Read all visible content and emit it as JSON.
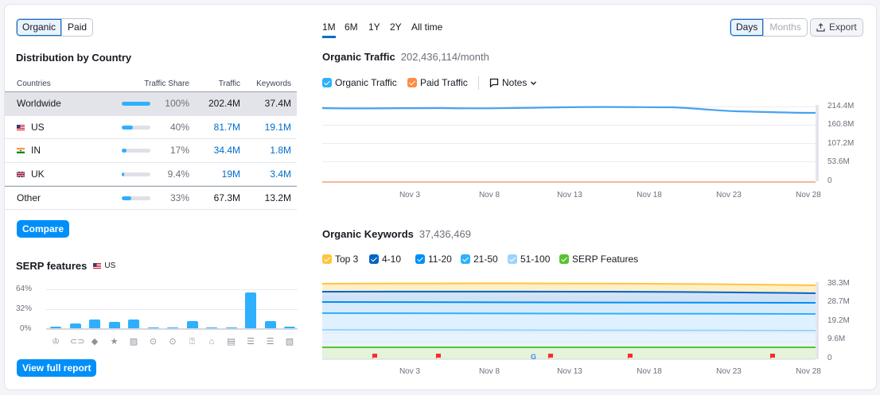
{
  "left": {
    "toggle": {
      "organic": "Organic",
      "paid": "Paid"
    },
    "distribution_title": "Distribution by Country",
    "table": {
      "headers": {
        "country": "Countries",
        "share": "Traffic Share",
        "traffic": "Traffic",
        "keywords": "Keywords"
      },
      "rows": [
        {
          "name": "Worldwide",
          "share": "100%",
          "share_pct": 100,
          "traffic": "202.4M",
          "keywords": "37.4M"
        },
        {
          "name": "US",
          "flag": "us-flag",
          "share": "40%",
          "share_pct": 40,
          "traffic": "81.7M",
          "keywords": "19.1M"
        },
        {
          "name": "IN",
          "flag": "in-flag",
          "share": "17%",
          "share_pct": 17,
          "traffic": "34.4M",
          "keywords": "1.8M"
        },
        {
          "name": "UK",
          "flag": "uk-flag",
          "share": "9.4%",
          "share_pct": 9.4,
          "traffic": "19M",
          "keywords": "3.4M"
        },
        {
          "name": "Other",
          "share": "33%",
          "share_pct": 33,
          "traffic": "67.3M",
          "keywords": "13.2M"
        }
      ]
    },
    "compare_label": "Compare",
    "serp": {
      "title": "SERP features",
      "country": "US",
      "y_labels": [
        "64%",
        "32%",
        "0%"
      ],
      "bars": [
        {
          "icon": "featured-snippet-icon",
          "glyph": "♔",
          "value": 2
        },
        {
          "icon": "sitelinks-icon",
          "glyph": "⊂⊃",
          "value": 8
        },
        {
          "icon": "local-pack-icon",
          "glyph": "◆",
          "value": 14
        },
        {
          "icon": "reviews-star-icon",
          "glyph": "★",
          "value": 11
        },
        {
          "icon": "image-icon",
          "glyph": "▨",
          "value": 15
        },
        {
          "icon": "video-icon",
          "glyph": "⊙",
          "value": 1
        },
        {
          "icon": "featured-video-icon",
          "glyph": "⊙",
          "value": 1
        },
        {
          "icon": "people-also-ask-icon",
          "glyph": "⍰",
          "value": 12
        },
        {
          "icon": "knowledge-panel-icon",
          "glyph": "⌂",
          "value": 1
        },
        {
          "icon": "top-stories-icon",
          "glyph": "▤",
          "value": 1
        },
        {
          "icon": "faq-icon",
          "glyph": "☰",
          "value": 59
        },
        {
          "icon": "list-icon",
          "glyph": "☰",
          "value": 12
        },
        {
          "icon": "image-pack-icon",
          "glyph": "▧",
          "value": 2
        }
      ]
    },
    "view_full_report": "View full report"
  },
  "right": {
    "periods": [
      "1M",
      "6M",
      "1Y",
      "2Y",
      "All time"
    ],
    "active_period": "1M",
    "granularity": {
      "days": "Days",
      "months": "Months"
    },
    "export_label": "Export",
    "traffic": {
      "title": "Organic Traffic",
      "value": "202,436,114/month",
      "legend": {
        "organic": "Organic Traffic",
        "paid": "Paid Traffic",
        "notes": "Notes"
      },
      "y_labels": [
        "214.4M",
        "160.8M",
        "107.2M",
        "53.6M",
        "0"
      ]
    },
    "keywords": {
      "title": "Organic Keywords",
      "value": "37,436,469",
      "legend": [
        "Top 3",
        "4-10",
        "11-20",
        "21-50",
        "51-100",
        "SERP Features"
      ],
      "y_labels": [
        "38.3M",
        "28.7M",
        "19.2M",
        "9.6M",
        "0"
      ]
    },
    "x_labels": [
      "Nov 3",
      "Nov 8",
      "Nov 13",
      "Nov 18",
      "Nov 23",
      "Nov 28"
    ]
  },
  "colors": {
    "accent": "#006dca",
    "bar": "#2eb0ff",
    "button": "#008ff8",
    "organic": "#2eb0ff",
    "paid": "#ff8c43",
    "top3": "#ffc53d",
    "k410": "#0064c8",
    "k1120": "#008ff8",
    "k2150": "#2eb0ff",
    "k51100": "#9cd3ff",
    "serp": "#59c232",
    "flag_marker": "#ff2a2a"
  }
}
